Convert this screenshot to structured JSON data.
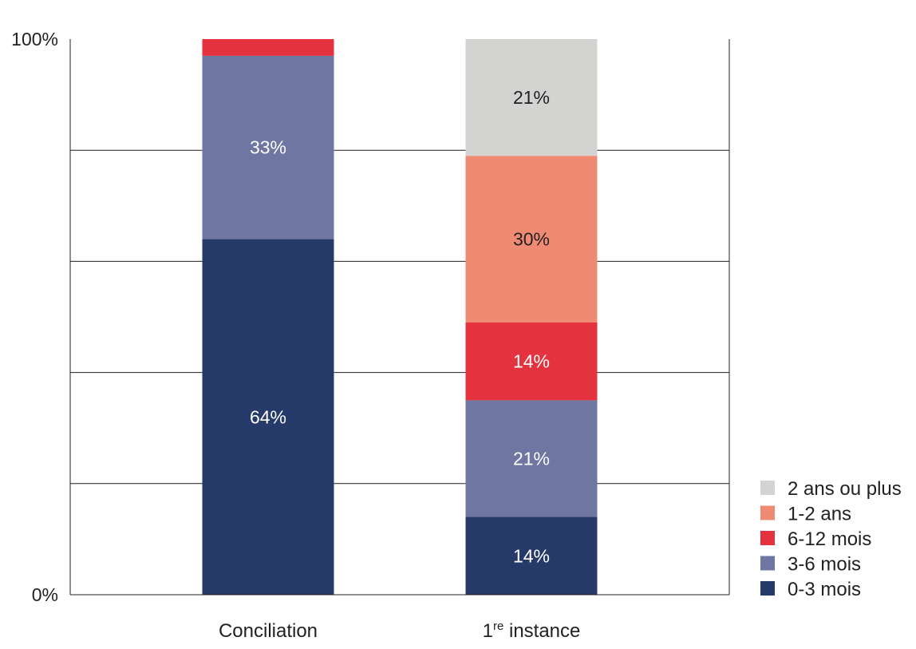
{
  "chart_data": {
    "type": "bar",
    "stacked": true,
    "title": "",
    "xlabel": "",
    "ylabel": "",
    "ylim": [
      0,
      100
    ],
    "y_ticks": [
      {
        "value": 0,
        "label": "0%"
      },
      {
        "value": 100,
        "label": "100%"
      }
    ],
    "gridlines": [
      20,
      40,
      60,
      80
    ],
    "grid": true,
    "legend_position": "bottom-right",
    "categories": [
      {
        "label": "Conciliation",
        "prefix": "Conciliation",
        "sup": "",
        "suffix": ""
      },
      {
        "label": "1re instance",
        "prefix": "1",
        "sup": "re",
        "suffix": " instance"
      }
    ],
    "series": [
      {
        "name": "0-3 mois",
        "color": "#263a69",
        "text_color": "#ffffff",
        "values": [
          64,
          14
        ],
        "show_label": [
          true,
          true
        ]
      },
      {
        "name": "3-6 mois",
        "color": "#6f76a2",
        "text_color": "#ffffff",
        "values": [
          33,
          21
        ],
        "show_label": [
          true,
          true
        ]
      },
      {
        "name": "6-12 mois",
        "color": "#e5323f",
        "text_color": "#ffffff",
        "values": [
          3,
          14
        ],
        "show_label": [
          false,
          true
        ]
      },
      {
        "name": "1-2 ans",
        "color": "#ef8b73",
        "text_color": "#231f20",
        "values": [
          0,
          30
        ],
        "show_label": [
          false,
          true
        ]
      },
      {
        "name": "2 ans ou plus",
        "color": "#d3d3d2",
        "text_color": "#231f20",
        "values": [
          0,
          21
        ],
        "show_label": [
          false,
          true
        ]
      }
    ]
  }
}
